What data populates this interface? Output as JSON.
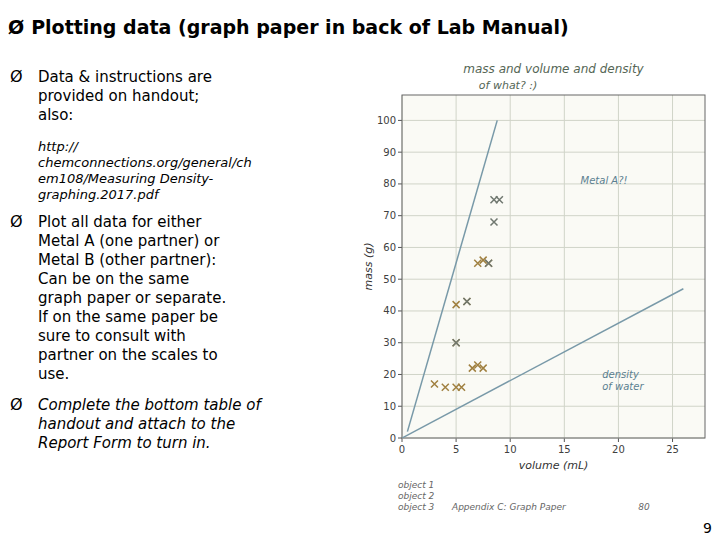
{
  "page": {
    "title": "Plotting data (graph paper in back of Lab Manual)",
    "bullet_symbol": "Ø",
    "bullets": [
      {
        "lines": [
          "Data & instructions are",
          "provided on handout;",
          "also:"
        ],
        "style": "normal",
        "has_bullet": true
      },
      {
        "lines": [
          "http://",
          "chemconnections.org/general/ch",
          "em108/Measuring Density-",
          "graphing.2017.pdf"
        ],
        "style": "italic",
        "has_bullet": false
      },
      {
        "lines": [
          "Plot all data for either",
          "Metal A (one partner) or",
          "Metal B (other partner):",
          "Can be on the same",
          "graph paper or separate.",
          "If on the same paper be",
          "sure to consult with",
          "partner on the scales to",
          "use."
        ],
        "style": "normal",
        "has_bullet": true
      },
      {
        "lines": [
          "Complete the bottom table of",
          "handout and attach to the",
          "Report Form to turn in."
        ],
        "style": "italic",
        "has_bullet": true
      }
    ],
    "page_number": "9"
  },
  "chart_data": {
    "type": "scatter",
    "title": "mass and volume  and density",
    "subtitle": "of what? :)",
    "x_label": "volume (mL)",
    "y_label": "mass (g)",
    "xlim": [
      0,
      28
    ],
    "ylim": [
      0,
      108
    ],
    "xticks": [
      0,
      5,
      10,
      15,
      20,
      25
    ],
    "yticks": [
      0,
      10,
      20,
      30,
      40,
      50,
      60,
      70,
      80,
      90,
      100
    ],
    "grid": true,
    "series": [
      {
        "type": "scatter",
        "marker": "x",
        "color": "#a08040",
        "x": [
          3,
          4,
          5,
          5.5,
          6.5,
          7,
          7.5,
          5,
          5,
          6,
          7,
          7.5,
          8
        ],
        "values": [
          17,
          16,
          16,
          16,
          22,
          23,
          22,
          30,
          42,
          43,
          55,
          56,
          55
        ]
      },
      {
        "type": "scatter",
        "marker": "x",
        "color": "#707870",
        "x": [
          5,
          6,
          8,
          8.5,
          8.5,
          9
        ],
        "values": [
          30,
          43,
          55,
          68,
          75,
          75
        ]
      },
      {
        "type": "line",
        "color": "#7899a8",
        "x": [
          0.5,
          8.8
        ],
        "values": [
          2,
          100
        ]
      },
      {
        "type": "line",
        "color": "#7899a8",
        "x": [
          0,
          26
        ],
        "values": [
          0,
          47
        ]
      }
    ],
    "annotations": [
      {
        "text": "Metal A?!",
        "x": 16.5,
        "y": 80
      },
      {
        "text": "density\nof water",
        "x": 18.5,
        "y": 19
      }
    ],
    "footnotes": [
      "object 1",
      "object 2",
      "object 3",
      "Appendix C: Graph Paper",
      "80"
    ]
  }
}
